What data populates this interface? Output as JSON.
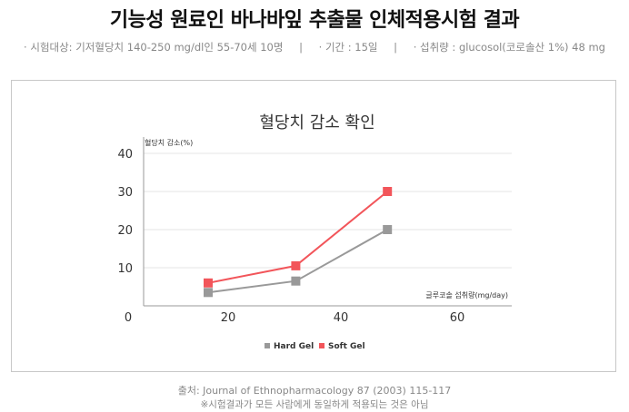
{
  "header": {
    "title": "기능성 원료인 바나바잎 추출물 인체적용시험 결과",
    "info_subjects": "· 시험대상: 기저혈당치 140-250 mg/dl인 55-70세 10명",
    "info_period": "· 기간 : 15일",
    "info_intake": "· 섭취량 : glucosol(코로솔산 1%) 48 mg",
    "separator": "|"
  },
  "footer": {
    "source": "출처: Journal of Ethnopharmacology 87 (2003) 115-117",
    "note": "※시험결과가 모든 사람에게 동일하게 적용되는 것은 아님"
  },
  "chart_data": {
    "type": "line",
    "title": "혈당치 감소 확인",
    "ylabel": "혈당치 감소(%)",
    "xlabel": "글루코솔 섭취량(mg/day)",
    "x_ticks": [
      0,
      20,
      40,
      60
    ],
    "y_ticks": [
      10,
      20,
      30,
      40
    ],
    "xlim": [
      0,
      60
    ],
    "ylim": [
      0,
      40
    ],
    "grid": true,
    "legend_position": "bottom",
    "x": [
      16,
      32,
      48
    ],
    "series": [
      {
        "name": "Hard Gel",
        "values": [
          3.5,
          6.5,
          20
        ],
        "color": "#999999"
      },
      {
        "name": "Soft Gel",
        "values": [
          6,
          10.5,
          30
        ],
        "color": "#f2555a"
      }
    ]
  }
}
